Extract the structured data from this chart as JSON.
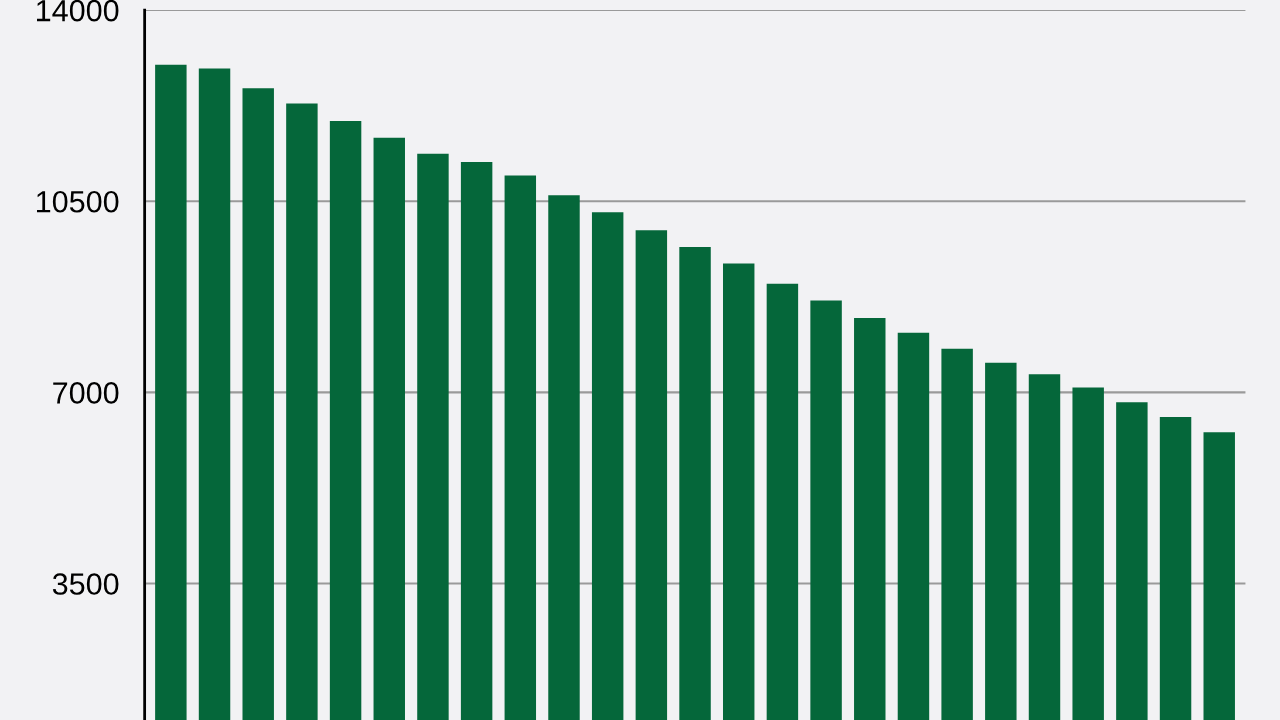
{
  "chart_data": {
    "type": "bar",
    "categories": [
      null,
      null,
      null,
      null,
      null,
      null,
      null,
      null,
      null,
      null,
      null,
      null,
      null,
      null,
      null,
      null,
      null,
      null,
      null,
      null,
      null,
      null,
      null,
      null,
      null
    ],
    "values": [
      13000,
      12930,
      12570,
      12290,
      11970,
      11660,
      11370,
      11220,
      10970,
      10610,
      10300,
      9970,
      9660,
      9360,
      8990,
      8680,
      8360,
      8090,
      7800,
      7540,
      7330,
      7090,
      6820,
      6550,
      6270
    ],
    "color": "#05673a",
    "ylim": [
      1000,
      14000
    ],
    "yticks": [
      3500,
      7000,
      10500,
      14000
    ],
    "grid": "y"
  }
}
